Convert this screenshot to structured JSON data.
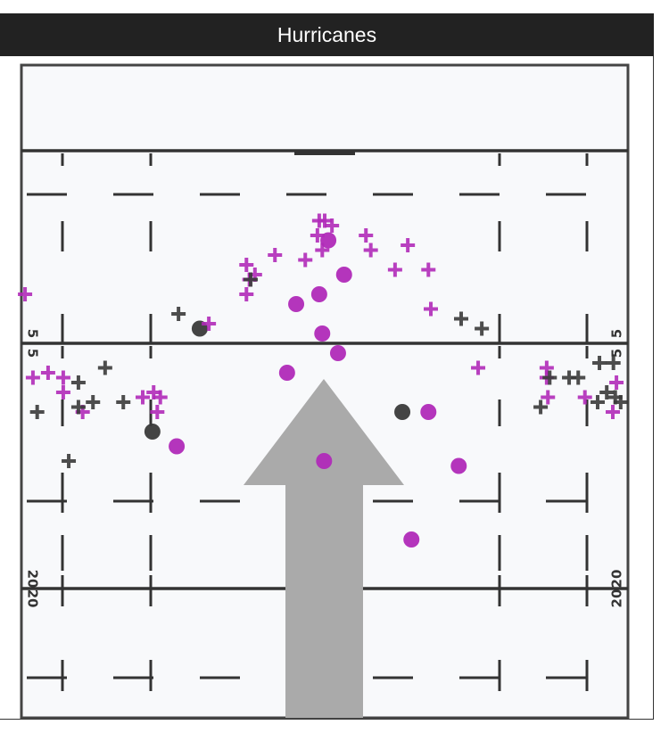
{
  "header": {
    "title": "Hurricanes"
  },
  "field": {
    "yard_labels": [
      {
        "text": "5",
        "yard": 25
      },
      {
        "text": "20",
        "yard": 20
      }
    ],
    "arrow_color": "#aaaaaa"
  },
  "chart_data": {
    "type": "scatter",
    "x_units": "percent of field width",
    "y_units": "yard line",
    "colors": {
      "magenta": "#b02ab8",
      "dark": "#3a3a3a"
    },
    "series": [
      {
        "marker": "circle",
        "color": "magenta",
        "points": [
          [
            45.3,
            25.8
          ],
          [
            49.1,
            26.0
          ],
          [
            53.2,
            26.4
          ],
          [
            49.6,
            25.2
          ],
          [
            52.2,
            24.8
          ],
          [
            43.8,
            24.4
          ],
          [
            49.9,
            22.6
          ],
          [
            67.1,
            23.6
          ],
          [
            72.1,
            22.5
          ],
          [
            64.3,
            21.0
          ],
          [
            25.6,
            22.9
          ],
          [
            50.6,
            27.1
          ]
        ]
      },
      {
        "marker": "circle",
        "color": "dark",
        "points": [
          [
            29.4,
            25.3
          ],
          [
            21.6,
            23.2
          ],
          [
            62.8,
            23.6
          ]
        ]
      },
      {
        "marker": "plus",
        "color": "magenta",
        "points": [
          [
            0.6,
            26.0
          ],
          [
            30.9,
            25.4
          ],
          [
            37.1,
            26.6
          ],
          [
            37.1,
            26.0
          ],
          [
            37.6,
            26.3
          ],
          [
            38.5,
            26.4
          ],
          [
            41.8,
            26.8
          ],
          [
            46.8,
            26.7
          ],
          [
            49.1,
            27.5
          ],
          [
            50.0,
            27.5
          ],
          [
            51.2,
            27.4
          ],
          [
            48.8,
            27.2
          ],
          [
            49.6,
            26.9
          ],
          [
            56.8,
            27.2
          ],
          [
            57.6,
            26.9
          ],
          [
            63.7,
            27.0
          ],
          [
            61.6,
            26.5
          ],
          [
            67.1,
            26.5
          ],
          [
            67.5,
            25.7
          ],
          [
            1.9,
            24.3
          ],
          [
            4.4,
            24.4
          ],
          [
            6.9,
            24.3
          ],
          [
            6.9,
            24.0
          ],
          [
            10.1,
            23.6
          ],
          [
            20.0,
            23.9
          ],
          [
            21.8,
            24.0
          ],
          [
            22.9,
            23.9
          ],
          [
            22.4,
            23.6
          ],
          [
            75.3,
            24.5
          ],
          [
            86.6,
            24.5
          ],
          [
            86.6,
            24.3
          ],
          [
            86.8,
            23.9
          ],
          [
            92.9,
            23.9
          ],
          [
            98.1,
            24.2
          ],
          [
            97.5,
            23.6
          ]
        ]
      },
      {
        "marker": "plus",
        "color": "dark",
        "points": [
          [
            25.9,
            25.6
          ],
          [
            37.8,
            26.3
          ],
          [
            72.5,
            25.5
          ],
          [
            75.9,
            25.3
          ],
          [
            13.8,
            24.5
          ],
          [
            9.4,
            24.2
          ],
          [
            11.8,
            23.8
          ],
          [
            9.4,
            23.7
          ],
          [
            2.6,
            23.6
          ],
          [
            16.8,
            23.8
          ],
          [
            7.8,
            22.6
          ],
          [
            85.6,
            23.7
          ],
          [
            87.1,
            24.3
          ],
          [
            90.3,
            24.3
          ],
          [
            91.8,
            24.3
          ],
          [
            95.3,
            24.6
          ],
          [
            97.6,
            24.6
          ],
          [
            96.5,
            24.0
          ],
          [
            97.9,
            23.9
          ],
          [
            98.8,
            23.8
          ],
          [
            95.0,
            23.8
          ]
        ]
      }
    ]
  }
}
